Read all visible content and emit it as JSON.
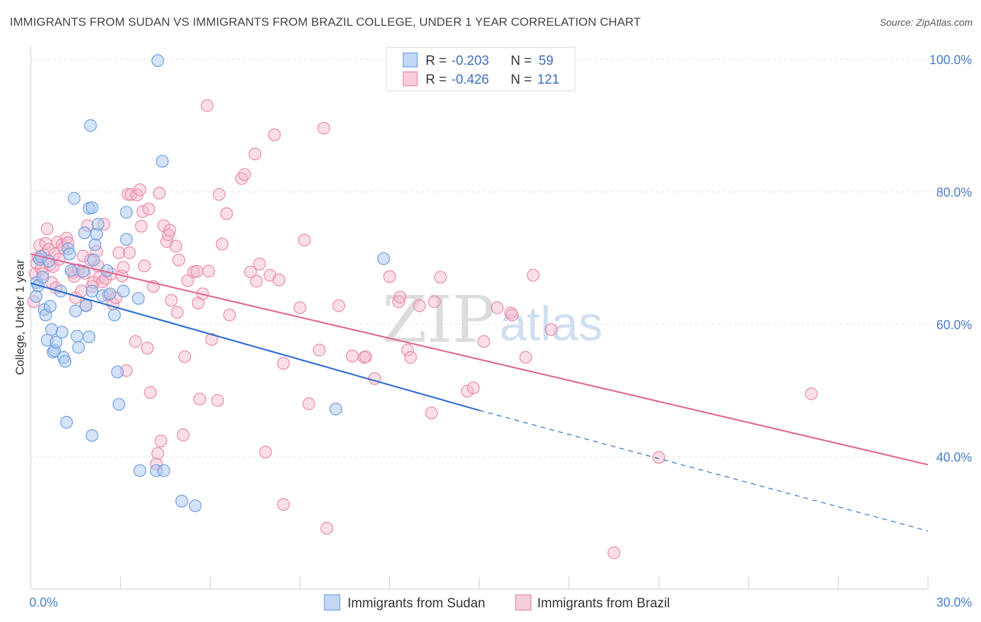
{
  "title": "IMMIGRANTS FROM SUDAN VS IMMIGRANTS FROM BRAZIL COLLEGE, UNDER 1 YEAR CORRELATION CHART",
  "source": "Source: ZipAtlas.com",
  "watermark": {
    "zip": "ZIP",
    "atlas": "atlas"
  },
  "colors": {
    "sudan_fill": "#a9c8f0",
    "sudan_stroke": "#6d9ee0",
    "sudan_line": "#2f6fd0",
    "brazil_fill": "#f5b8cc",
    "brazil_stroke": "#e98aa8",
    "brazil_line": "#e06a95",
    "axis_text": "#4a7cc7",
    "grid": "#e6e6e6"
  },
  "legend_top": [
    {
      "r_label": "R =",
      "r_value": "-0.203",
      "n_label": "N =",
      "n_value": "59",
      "series": "sudan"
    },
    {
      "r_label": "R =",
      "r_value": "-0.426",
      "n_label": "N =",
      "n_value": "121",
      "series": "brazil"
    }
  ],
  "chart_data": {
    "type": "scatter",
    "title": "IMMIGRANTS FROM SUDAN VS IMMIGRANTS FROM BRAZIL COLLEGE, UNDER 1 YEAR CORRELATION CHART",
    "xlabel": "",
    "ylabel": "College, Under 1 year",
    "xlim": [
      0,
      30
    ],
    "ylim": [
      20,
      102
    ],
    "x_tick_labels": [
      "0.0%",
      "30.0%"
    ],
    "y_ticks": [
      40,
      60,
      80,
      100
    ],
    "y_tick_labels": [
      "40.0%",
      "60.0%",
      "80.0%",
      "100.0%"
    ],
    "grid": true,
    "legend_position": "bottom-center",
    "series": [
      {
        "name": "Immigrants from Sudan",
        "color": "#a9c8f0",
        "trend": {
          "x": [
            0,
            15
          ],
          "y": [
            66.2,
            47.0
          ],
          "dashed_to": [
            30,
            28.8
          ]
        },
        "points": [
          [
            0.18,
            64.2
          ],
          [
            0.2,
            66.3
          ],
          [
            0.25,
            65.8
          ],
          [
            0.3,
            69.8
          ],
          [
            0.35,
            70.2
          ],
          [
            0.4,
            67.1
          ],
          [
            0.45,
            62.2
          ],
          [
            0.5,
            61.4
          ],
          [
            0.55,
            57.6
          ],
          [
            0.6,
            69.5
          ],
          [
            0.65,
            62.7
          ],
          [
            0.7,
            59.2
          ],
          [
            0.75,
            55.8
          ],
          [
            0.8,
            56.0
          ],
          [
            0.85,
            57.3
          ],
          [
            1.0,
            65.0
          ],
          [
            1.05,
            58.8
          ],
          [
            1.1,
            55.0
          ],
          [
            1.15,
            54.4
          ],
          [
            1.2,
            45.2
          ],
          [
            1.25,
            71.4
          ],
          [
            1.3,
            70.6
          ],
          [
            1.35,
            68.1
          ],
          [
            1.45,
            79.0
          ],
          [
            1.5,
            62.0
          ],
          [
            1.55,
            58.2
          ],
          [
            1.6,
            56.5
          ],
          [
            1.75,
            68.0
          ],
          [
            1.8,
            73.8
          ],
          [
            1.85,
            62.8
          ],
          [
            1.95,
            58.1
          ],
          [
            1.95,
            77.5
          ],
          [
            2.0,
            90.0
          ],
          [
            2.05,
            43.2
          ],
          [
            2.05,
            77.6
          ],
          [
            2.05,
            65.0
          ],
          [
            2.1,
            69.7
          ],
          [
            2.15,
            72.0
          ],
          [
            2.2,
            73.6
          ],
          [
            2.25,
            75.1
          ],
          [
            2.4,
            64.3
          ],
          [
            2.55,
            68.1
          ],
          [
            2.65,
            64.6
          ],
          [
            2.8,
            61.4
          ],
          [
            2.9,
            52.8
          ],
          [
            2.95,
            47.9
          ],
          [
            3.1,
            65.0
          ],
          [
            3.2,
            72.8
          ],
          [
            3.2,
            76.9
          ],
          [
            3.6,
            63.9
          ],
          [
            3.65,
            37.9
          ],
          [
            4.2,
            37.9
          ],
          [
            4.25,
            99.8
          ],
          [
            4.4,
            84.6
          ],
          [
            4.45,
            37.9
          ],
          [
            5.05,
            33.3
          ],
          [
            5.5,
            32.6
          ],
          [
            10.2,
            47.2
          ],
          [
            11.8,
            69.9
          ]
        ]
      },
      {
        "name": "Immigrants from Brazil",
        "color": "#f5b8cc",
        "trend": {
          "x": [
            0,
            30
          ],
          "y": [
            70.6,
            38.8
          ]
        },
        "points": [
          [
            0.1,
            63.4
          ],
          [
            0.15,
            67.6
          ],
          [
            0.2,
            69.2
          ],
          [
            0.25,
            70.1
          ],
          [
            0.3,
            71.9
          ],
          [
            0.35,
            68.4
          ],
          [
            0.4,
            67.6
          ],
          [
            0.45,
            70.5
          ],
          [
            0.5,
            72.2
          ],
          [
            0.55,
            74.4
          ],
          [
            0.6,
            71.3
          ],
          [
            0.65,
            69.0
          ],
          [
            0.7,
            66.3
          ],
          [
            0.75,
            68.7
          ],
          [
            0.8,
            70.6
          ],
          [
            0.85,
            65.5
          ],
          [
            0.9,
            72.4
          ],
          [
            0.95,
            69.8
          ],
          [
            1.05,
            72.0
          ],
          [
            1.1,
            71.5
          ],
          [
            1.2,
            73.0
          ],
          [
            1.25,
            72.3
          ],
          [
            1.4,
            67.8
          ],
          [
            1.45,
            67.2
          ],
          [
            1.5,
            64.0
          ],
          [
            1.6,
            68.2
          ],
          [
            1.7,
            65.0
          ],
          [
            1.75,
            70.3
          ],
          [
            1.8,
            67.7
          ],
          [
            1.85,
            62.9
          ],
          [
            1.9,
            74.9
          ],
          [
            2.0,
            69.7
          ],
          [
            2.05,
            65.7
          ],
          [
            2.1,
            66.3
          ],
          [
            2.2,
            71.0
          ],
          [
            2.25,
            68.8
          ],
          [
            2.3,
            67.1
          ],
          [
            2.4,
            66.4
          ],
          [
            2.45,
            75.1
          ],
          [
            2.5,
            66.9
          ],
          [
            2.6,
            64.4
          ],
          [
            2.7,
            67.6
          ],
          [
            2.75,
            63.1
          ],
          [
            2.85,
            64.0
          ],
          [
            2.95,
            70.8
          ],
          [
            3.05,
            67.3
          ],
          [
            3.1,
            68.6
          ],
          [
            3.2,
            53.0
          ],
          [
            3.25,
            79.6
          ],
          [
            3.3,
            70.8
          ],
          [
            3.35,
            79.6
          ],
          [
            3.5,
            57.4
          ],
          [
            3.55,
            79.5
          ],
          [
            3.65,
            80.3
          ],
          [
            3.7,
            74.8
          ],
          [
            3.75,
            77.0
          ],
          [
            3.8,
            68.8
          ],
          [
            3.9,
            56.4
          ],
          [
            3.95,
            77.4
          ],
          [
            4.0,
            49.7
          ],
          [
            4.1,
            65.7
          ],
          [
            4.2,
            38.9
          ],
          [
            4.25,
            40.5
          ],
          [
            4.3,
            79.8
          ],
          [
            4.35,
            42.4
          ],
          [
            4.45,
            74.9
          ],
          [
            4.55,
            72.5
          ],
          [
            4.6,
            73.5
          ],
          [
            4.65,
            74.2
          ],
          [
            4.7,
            63.6
          ],
          [
            4.85,
            71.8
          ],
          [
            4.9,
            61.8
          ],
          [
            4.95,
            69.7
          ],
          [
            5.1,
            43.3
          ],
          [
            5.15,
            55.1
          ],
          [
            5.25,
            66.6
          ],
          [
            5.45,
            67.9
          ],
          [
            5.55,
            68.0
          ],
          [
            5.6,
            63.2
          ],
          [
            5.65,
            48.7
          ],
          [
            5.75,
            64.6
          ],
          [
            5.9,
            93.0
          ],
          [
            5.95,
            68.0
          ],
          [
            6.05,
            57.7
          ],
          [
            6.25,
            48.5
          ],
          [
            6.3,
            79.6
          ],
          [
            6.4,
            72.1
          ],
          [
            6.55,
            76.7
          ],
          [
            6.65,
            61.4
          ],
          [
            7.05,
            82.0
          ],
          [
            7.15,
            82.6
          ],
          [
            7.35,
            67.9
          ],
          [
            7.5,
            85.7
          ],
          [
            7.55,
            66.5
          ],
          [
            7.65,
            69.1
          ],
          [
            7.85,
            40.7
          ],
          [
            8.0,
            67.4
          ],
          [
            8.15,
            88.6
          ],
          [
            8.3,
            66.7
          ],
          [
            8.45,
            54.1
          ],
          [
            8.45,
            32.8
          ],
          [
            9.0,
            62.5
          ],
          [
            9.15,
            72.7
          ],
          [
            9.3,
            48.0
          ],
          [
            9.65,
            56.1
          ],
          [
            9.8,
            89.6
          ],
          [
            9.9,
            29.2
          ],
          [
            10.3,
            62.8
          ],
          [
            10.75,
            55.2
          ],
          [
            11.15,
            55.0
          ],
          [
            11.2,
            55.1
          ],
          [
            11.5,
            51.8
          ],
          [
            12.0,
            67.2
          ],
          [
            12.3,
            63.4
          ],
          [
            12.35,
            64.1
          ],
          [
            12.6,
            56.1
          ],
          [
            12.7,
            55.0
          ],
          [
            13.0,
            62.8
          ],
          [
            13.4,
            46.6
          ],
          [
            13.5,
            63.4
          ],
          [
            13.7,
            67.1
          ],
          [
            14.6,
            49.9
          ],
          [
            14.8,
            50.4
          ],
          [
            15.15,
            57.4
          ],
          [
            15.6,
            62.5
          ],
          [
            16.05,
            61.7
          ],
          [
            16.1,
            61.4
          ],
          [
            16.55,
            55.0
          ],
          [
            16.8,
            67.4
          ],
          [
            17.4,
            59.2
          ],
          [
            19.5,
            25.5
          ],
          [
            21.0,
            39.9
          ],
          [
            26.1,
            49.5
          ]
        ]
      }
    ]
  },
  "legend_bottom": [
    {
      "label": "Immigrants from Sudan",
      "series": "sudan"
    },
    {
      "label": "Immigrants from Brazil",
      "series": "brazil"
    }
  ]
}
